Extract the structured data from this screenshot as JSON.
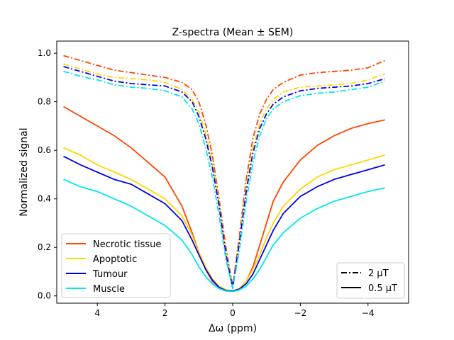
{
  "chart_data": {
    "type": "line",
    "title": "Z-spectra (Mean ± SEM)",
    "xlabel": "Δω (ppm)",
    "ylabel": "Normalized signal",
    "xlim": [
      5.2,
      -5.2
    ],
    "ylim": [
      -0.03,
      1.05
    ],
    "xticks": [
      4,
      2,
      0,
      -2,
      -4
    ],
    "xtick_labels": [
      "4",
      "2",
      "0",
      "−2",
      "−4"
    ],
    "yticks": [
      0.0,
      0.2,
      0.4,
      0.6,
      0.8,
      1.0
    ],
    "ytick_labels": [
      "0.0",
      "0.2",
      "0.4",
      "0.6",
      "0.8",
      "1.0"
    ],
    "grid": false,
    "legend_tissue": {
      "placement": "lower-left",
      "entries": [
        {
          "label": "Necrotic tissue",
          "color": "#ff4500"
        },
        {
          "label": "Apoptotic",
          "color": "#ffd700"
        },
        {
          "label": "Tumour",
          "color": "#0000ee"
        },
        {
          "label": "Muscle",
          "color": "#00e5ee"
        }
      ]
    },
    "legend_power": {
      "placement": "lower-right",
      "entries": [
        {
          "label": "2 μT",
          "style": "dashdot"
        },
        {
          "label": "0.5 μT",
          "style": "solid"
        }
      ]
    },
    "x": [
      5,
      4.5,
      4,
      3.5,
      3,
      2.5,
      2,
      1.5,
      1.2,
      1,
      0.8,
      0.6,
      0.4,
      0.2,
      0,
      -0.2,
      -0.4,
      -0.6,
      -0.8,
      -1,
      -1.2,
      -1.5,
      -2,
      -2.5,
      -3,
      -3.5,
      -4,
      -4.5
    ],
    "series": [
      {
        "name": "Necrotic tissue 2 μT",
        "tissue": "Necrotic tissue",
        "power": "2 μT",
        "color": "#ff4500",
        "style": "dashdot",
        "values": [
          0.99,
          0.97,
          0.95,
          0.93,
          0.92,
          0.91,
          0.9,
          0.88,
          0.85,
          0.8,
          0.71,
          0.58,
          0.4,
          0.2,
          0.04,
          0.25,
          0.48,
          0.65,
          0.75,
          0.81,
          0.85,
          0.88,
          0.91,
          0.92,
          0.925,
          0.93,
          0.94,
          0.97
        ]
      },
      {
        "name": "Apoptotic 2 μT",
        "tissue": "Apoptotic",
        "power": "2 μT",
        "color": "#ffd700",
        "style": "dashdot",
        "values": [
          0.955,
          0.935,
          0.915,
          0.9,
          0.895,
          0.89,
          0.88,
          0.85,
          0.81,
          0.76,
          0.67,
          0.55,
          0.38,
          0.18,
          0.04,
          0.23,
          0.45,
          0.61,
          0.71,
          0.77,
          0.81,
          0.84,
          0.86,
          0.865,
          0.87,
          0.875,
          0.89,
          0.915
        ]
      },
      {
        "name": "Tumour 2 μT",
        "tissue": "Tumour",
        "power": "2 μT",
        "color": "#0000ee",
        "style": "dashdot",
        "values": [
          0.945,
          0.925,
          0.905,
          0.885,
          0.875,
          0.87,
          0.865,
          0.84,
          0.8,
          0.74,
          0.65,
          0.53,
          0.37,
          0.17,
          0.035,
          0.22,
          0.43,
          0.59,
          0.69,
          0.75,
          0.79,
          0.82,
          0.845,
          0.855,
          0.86,
          0.865,
          0.875,
          0.895
        ]
      },
      {
        "name": "Muscle 2 μT",
        "tissue": "Muscle",
        "power": "2 μT",
        "color": "#00e5ee",
        "style": "dashdot",
        "values": [
          0.925,
          0.905,
          0.89,
          0.87,
          0.86,
          0.855,
          0.845,
          0.82,
          0.77,
          0.71,
          0.61,
          0.49,
          0.33,
          0.15,
          0.03,
          0.19,
          0.39,
          0.55,
          0.66,
          0.73,
          0.77,
          0.8,
          0.825,
          0.835,
          0.84,
          0.85,
          0.86,
          0.885
        ]
      },
      {
        "name": "Necrotic tissue 0.5 μT",
        "tissue": "Necrotic tissue",
        "power": "0.5 μT",
        "color": "#ff4500",
        "style": "solid",
        "values": [
          0.78,
          0.74,
          0.7,
          0.66,
          0.61,
          0.55,
          0.49,
          0.37,
          0.26,
          0.18,
          0.11,
          0.06,
          0.035,
          0.025,
          0.02,
          0.03,
          0.06,
          0.12,
          0.21,
          0.3,
          0.39,
          0.47,
          0.56,
          0.62,
          0.66,
          0.69,
          0.71,
          0.725
        ]
      },
      {
        "name": "Apoptotic 0.5 μT",
        "tissue": "Apoptotic",
        "power": "0.5 μT",
        "color": "#ffd700",
        "style": "solid",
        "values": [
          0.61,
          0.58,
          0.54,
          0.51,
          0.48,
          0.44,
          0.4,
          0.33,
          0.25,
          0.18,
          0.12,
          0.07,
          0.04,
          0.025,
          0.02,
          0.03,
          0.06,
          0.11,
          0.17,
          0.24,
          0.3,
          0.37,
          0.44,
          0.49,
          0.52,
          0.54,
          0.56,
          0.58
        ]
      },
      {
        "name": "Tumour 0.5 μT",
        "tissue": "Tumour",
        "power": "0.5 μT",
        "color": "#0000ee",
        "style": "solid",
        "values": [
          0.575,
          0.54,
          0.51,
          0.48,
          0.46,
          0.42,
          0.38,
          0.31,
          0.23,
          0.17,
          0.11,
          0.065,
          0.035,
          0.022,
          0.02,
          0.028,
          0.05,
          0.09,
          0.15,
          0.21,
          0.27,
          0.34,
          0.41,
          0.45,
          0.48,
          0.5,
          0.52,
          0.54
        ]
      },
      {
        "name": "Muscle 0.5 μT",
        "tissue": "Muscle",
        "power": "0.5 μT",
        "color": "#00e5ee",
        "style": "solid",
        "values": [
          0.48,
          0.45,
          0.43,
          0.4,
          0.37,
          0.33,
          0.29,
          0.23,
          0.17,
          0.12,
          0.08,
          0.05,
          0.03,
          0.02,
          0.018,
          0.025,
          0.04,
          0.07,
          0.11,
          0.16,
          0.21,
          0.26,
          0.32,
          0.36,
          0.39,
          0.41,
          0.43,
          0.445
        ]
      }
    ]
  }
}
